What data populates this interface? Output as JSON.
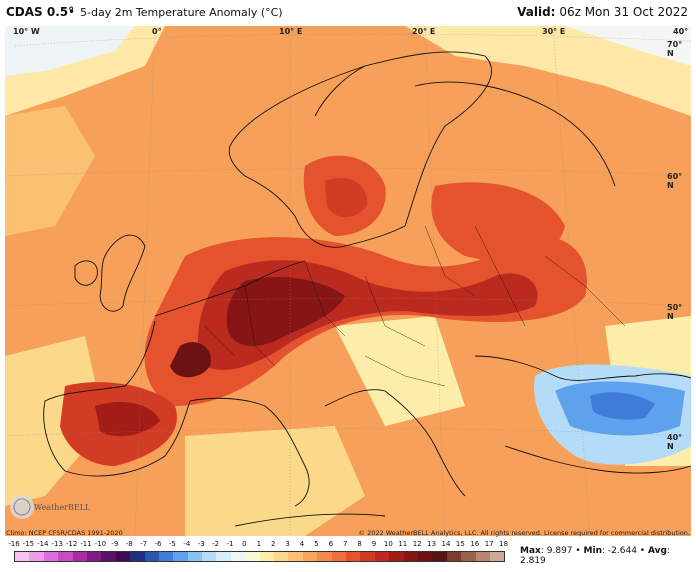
{
  "header": {
    "model": "CDAS 0.5°",
    "separator": "•",
    "subtitle": "5-day 2m Temperature Anomaly (°C)",
    "valid_label": "Valid:",
    "valid_time": "06z Mon 31 Oct 2022"
  },
  "map": {
    "lon_labels": [
      "10° W",
      "0°",
      "10° E",
      "20° E",
      "30° E",
      "40°"
    ],
    "lat_labels": [
      "70° N",
      "60° N",
      "50° N",
      "40° N"
    ]
  },
  "footer": {
    "climo": "Climo: NCEP CFSR/CDAS 1991-2020",
    "copyright": "© 2022 WeatherBELL Analytics, LLC. All rights reserved. License required for commercial distribution.",
    "logo_text": "WeatherBELL"
  },
  "colorbar": {
    "ticks": [
      "-16",
      "-15",
      "-14",
      "-13",
      "-12",
      "-11",
      "-10",
      "-9",
      "-8",
      "-7",
      "-6",
      "-5",
      "-4",
      "-3",
      "-2",
      "-1",
      "0",
      "1",
      "2",
      "3",
      "4",
      "5",
      "6",
      "7",
      "8",
      "9",
      "10",
      "11",
      "12",
      "13",
      "14",
      "15",
      "16",
      "17",
      "18"
    ],
    "colors": [
      "#f7c3f5",
      "#ee9bec",
      "#de6fda",
      "#c94ac3",
      "#ac2aa6",
      "#7f1a86",
      "#5c0f6b",
      "#3c0b54",
      "#1e2f7e",
      "#2b55b0",
      "#3f7bd8",
      "#5ea2ee",
      "#89c3f6",
      "#b4dcf8",
      "#d6ecf8",
      "#edf6f7",
      "#fbf8d6",
      "#fdedaa",
      "#fcd98a",
      "#fbc170",
      "#f9a65a",
      "#f68a48",
      "#f06e3a",
      "#e4532e",
      "#d23c25",
      "#bb2a1e",
      "#a21d18",
      "#871515",
      "#6d1212",
      "#5a1411",
      "#7c3d2a",
      "#9c5f48",
      "#b98670",
      "#d0a896"
    ],
    "max_label": "Max",
    "max_value": "9.897",
    "min_label": "Min",
    "min_value": "-2.644",
    "avg_label": "Avg",
    "avg_value": "2.819"
  }
}
